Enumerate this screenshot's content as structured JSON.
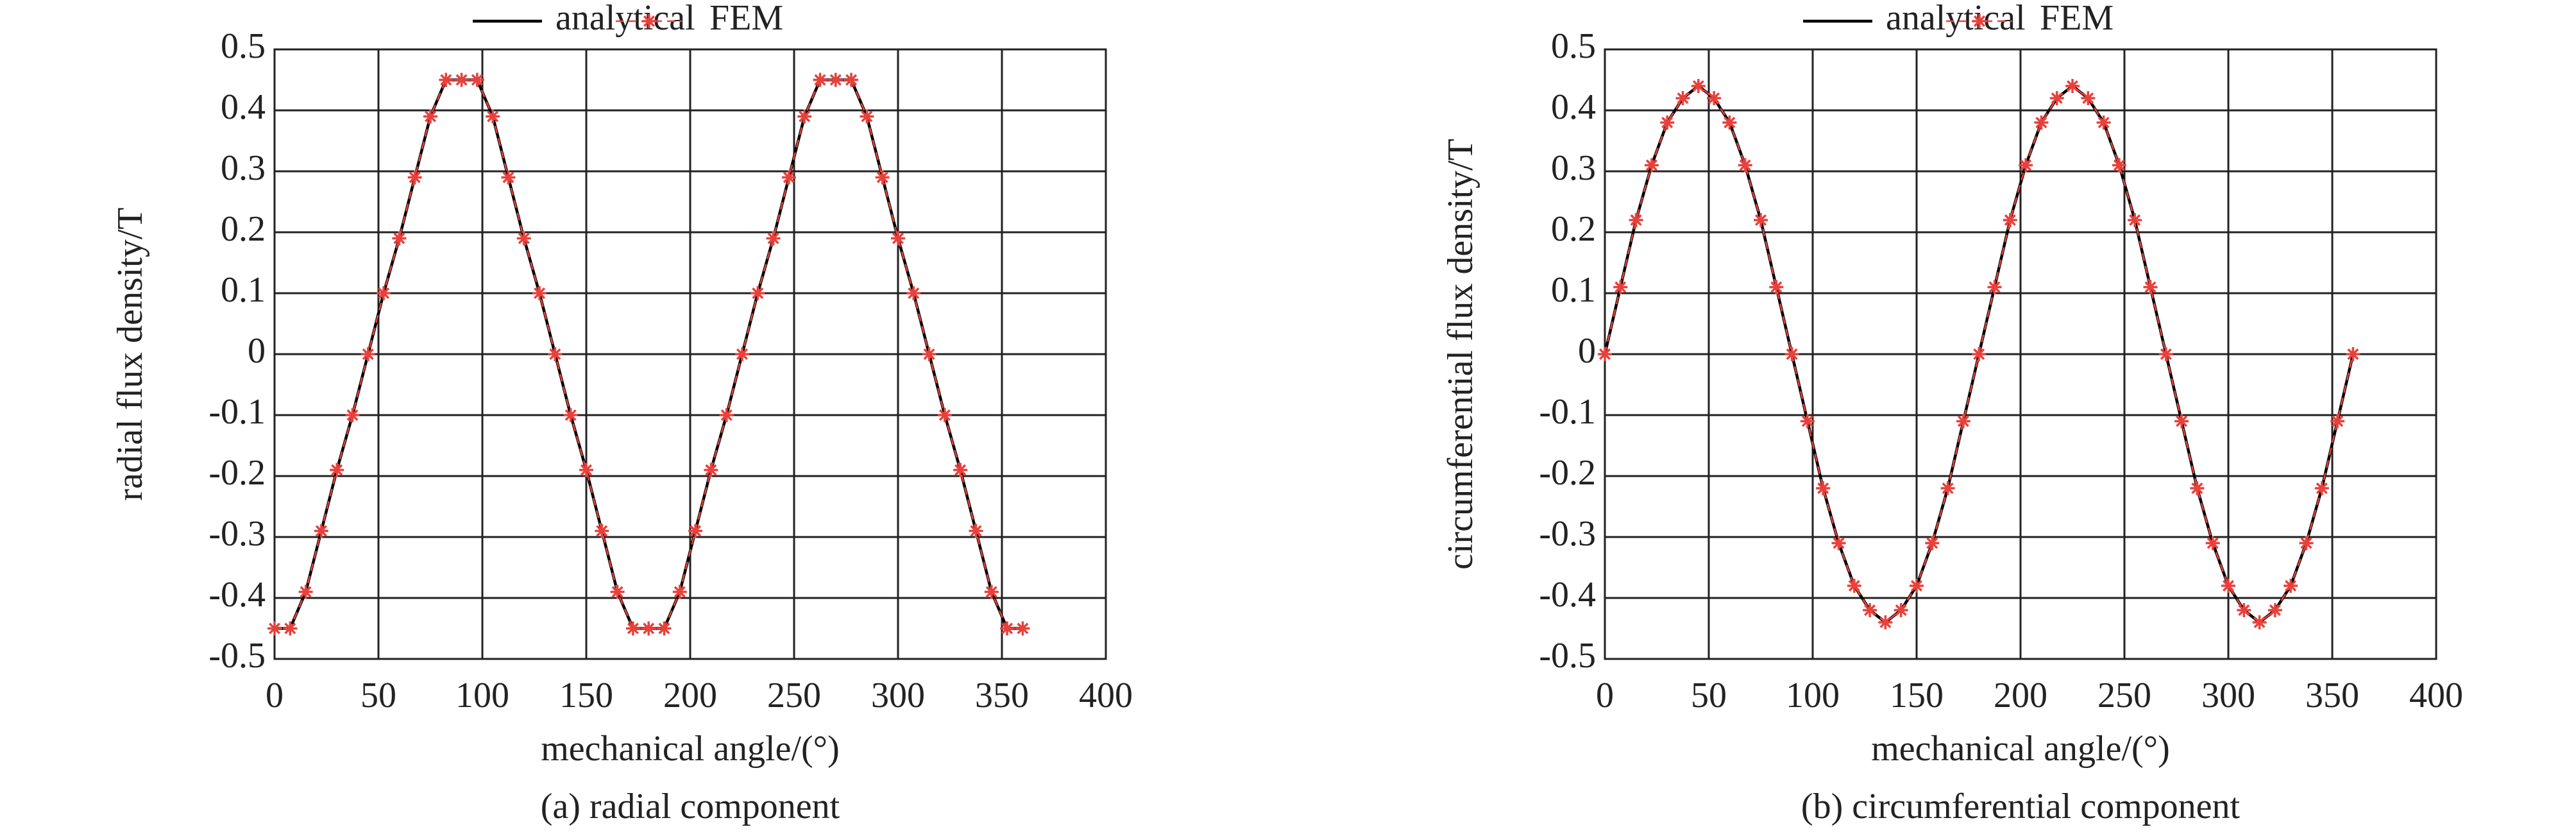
{
  "chart_data": [
    {
      "type": "line",
      "ylabel": "radial flux density/T",
      "xlabel": "mechanical angle/(°)",
      "caption": "(a) radial component",
      "x": [
        0,
        7.5,
        15,
        22.5,
        30,
        37.5,
        45,
        52.5,
        60,
        67.5,
        75,
        82.5,
        90,
        97.5,
        105,
        112.5,
        120,
        127.5,
        135,
        142.5,
        150,
        157.5,
        165,
        172.5,
        180,
        187.5,
        195,
        202.5,
        210,
        217.5,
        225,
        232.5,
        240,
        247.5,
        255,
        262.5,
        270,
        277.5,
        285,
        292.5,
        300,
        307.5,
        315,
        322.5,
        330,
        337.5,
        345,
        352.5,
        360
      ],
      "series": [
        {
          "name": "analytical",
          "color": "#000000",
          "values": [
            -0.45,
            -0.45,
            -0.39,
            -0.29,
            -0.19,
            -0.1,
            0,
            0.1,
            0.19,
            0.29,
            0.39,
            0.45,
            0.45,
            0.45,
            0.39,
            0.29,
            0.19,
            0.1,
            0,
            -0.1,
            -0.19,
            -0.29,
            -0.39,
            -0.45,
            -0.45,
            -0.45,
            -0.39,
            -0.29,
            -0.19,
            -0.1,
            0,
            0.1,
            0.19,
            0.29,
            0.39,
            0.45,
            0.45,
            0.45,
            0.39,
            0.29,
            0.19,
            0.1,
            0,
            -0.1,
            -0.19,
            -0.29,
            -0.39,
            -0.45,
            -0.45
          ]
        },
        {
          "name": "FEM",
          "color": "#e8413c",
          "values": [
            -0.45,
            -0.45,
            -0.39,
            -0.29,
            -0.19,
            -0.1,
            0,
            0.1,
            0.19,
            0.29,
            0.39,
            0.45,
            0.45,
            0.45,
            0.39,
            0.29,
            0.19,
            0.1,
            0,
            -0.1,
            -0.19,
            -0.29,
            -0.39,
            -0.45,
            -0.45,
            -0.45,
            -0.39,
            -0.29,
            -0.19,
            -0.1,
            0,
            0.1,
            0.19,
            0.29,
            0.39,
            0.45,
            0.45,
            0.45,
            0.39,
            0.29,
            0.19,
            0.1,
            0,
            -0.1,
            -0.19,
            -0.29,
            -0.39,
            -0.45,
            -0.45
          ]
        }
      ],
      "xlim": [
        0,
        400
      ],
      "xticks": [
        0,
        50,
        100,
        150,
        200,
        250,
        300,
        350,
        400
      ],
      "ylim": [
        -0.5,
        0.5
      ],
      "yticks": [
        -0.5,
        -0.4,
        -0.3,
        -0.2,
        -0.1,
        0,
        0.1,
        0.2,
        0.3,
        0.4,
        0.5
      ],
      "grid": true
    },
    {
      "type": "line",
      "ylabel": "circumferential flux density/T",
      "xlabel": "mechanical angle/(°)",
      "caption": "(b) circumferential component",
      "x": [
        0,
        7.5,
        15,
        22.5,
        30,
        37.5,
        45,
        52.5,
        60,
        67.5,
        75,
        82.5,
        90,
        97.5,
        105,
        112.5,
        120,
        127.5,
        135,
        142.5,
        150,
        157.5,
        165,
        172.5,
        180,
        187.5,
        195,
        202.5,
        210,
        217.5,
        225,
        232.5,
        240,
        247.5,
        255,
        262.5,
        270,
        277.5,
        285,
        292.5,
        300,
        307.5,
        315,
        322.5,
        330,
        337.5,
        345,
        352.5,
        360
      ],
      "series": [
        {
          "name": "analytical",
          "color": "#000000",
          "values": [
            0,
            0.11,
            0.22,
            0.31,
            0.38,
            0.42,
            0.44,
            0.42,
            0.38,
            0.31,
            0.22,
            0.11,
            0,
            -0.11,
            -0.22,
            -0.31,
            -0.38,
            -0.42,
            -0.44,
            -0.42,
            -0.38,
            -0.31,
            -0.22,
            -0.11,
            0,
            0.11,
            0.22,
            0.31,
            0.38,
            0.42,
            0.44,
            0.42,
            0.38,
            0.31,
            0.22,
            0.11,
            0,
            -0.11,
            -0.22,
            -0.31,
            -0.38,
            -0.42,
            -0.44,
            -0.42,
            -0.38,
            -0.31,
            -0.22,
            -0.11,
            0
          ]
        },
        {
          "name": "FEM",
          "color": "#e8413c",
          "values": [
            0,
            0.11,
            0.22,
            0.31,
            0.38,
            0.42,
            0.44,
            0.42,
            0.38,
            0.31,
            0.22,
            0.11,
            0,
            -0.11,
            -0.22,
            -0.31,
            -0.38,
            -0.42,
            -0.44,
            -0.42,
            -0.38,
            -0.31,
            -0.22,
            -0.11,
            0,
            0.11,
            0.22,
            0.31,
            0.38,
            0.42,
            0.44,
            0.42,
            0.38,
            0.31,
            0.22,
            0.11,
            0,
            -0.11,
            -0.22,
            -0.31,
            -0.38,
            -0.42,
            -0.44,
            -0.42,
            -0.38,
            -0.31,
            -0.22,
            -0.11,
            0
          ]
        }
      ],
      "xlim": [
        0,
        400
      ],
      "xticks": [
        0,
        50,
        100,
        150,
        200,
        250,
        300,
        350,
        400
      ],
      "ylim": [
        -0.5,
        0.5
      ],
      "yticks": [
        -0.5,
        -0.4,
        -0.3,
        -0.2,
        -0.1,
        0,
        0.1,
        0.2,
        0.3,
        0.4,
        0.5
      ],
      "grid": true
    }
  ]
}
